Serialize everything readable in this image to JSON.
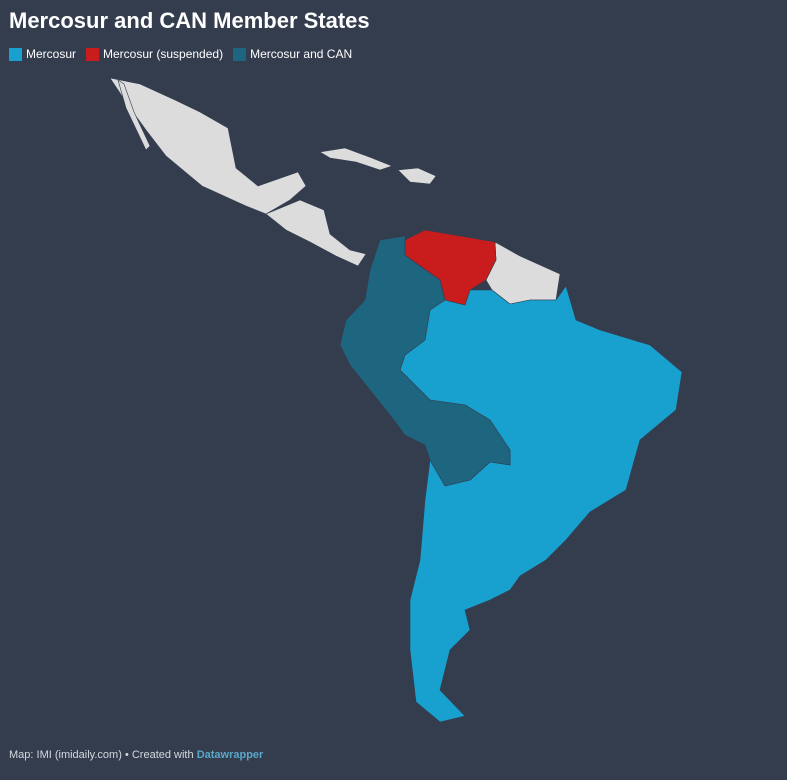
{
  "header": {
    "title": "Mercosur and CAN Member States"
  },
  "legend": [
    {
      "label": "Mercosur",
      "color": "#18a0cf"
    },
    {
      "label": "Mercosur (suspended)",
      "color": "#c91c1c"
    },
    {
      "label": "Mercosur and CAN",
      "color": "#1e6580"
    }
  ],
  "footer": {
    "source": "Map: IMI (imidaily.com)",
    "separator": "•",
    "created": "Created with",
    "brand": "Datawrapper"
  }
}
